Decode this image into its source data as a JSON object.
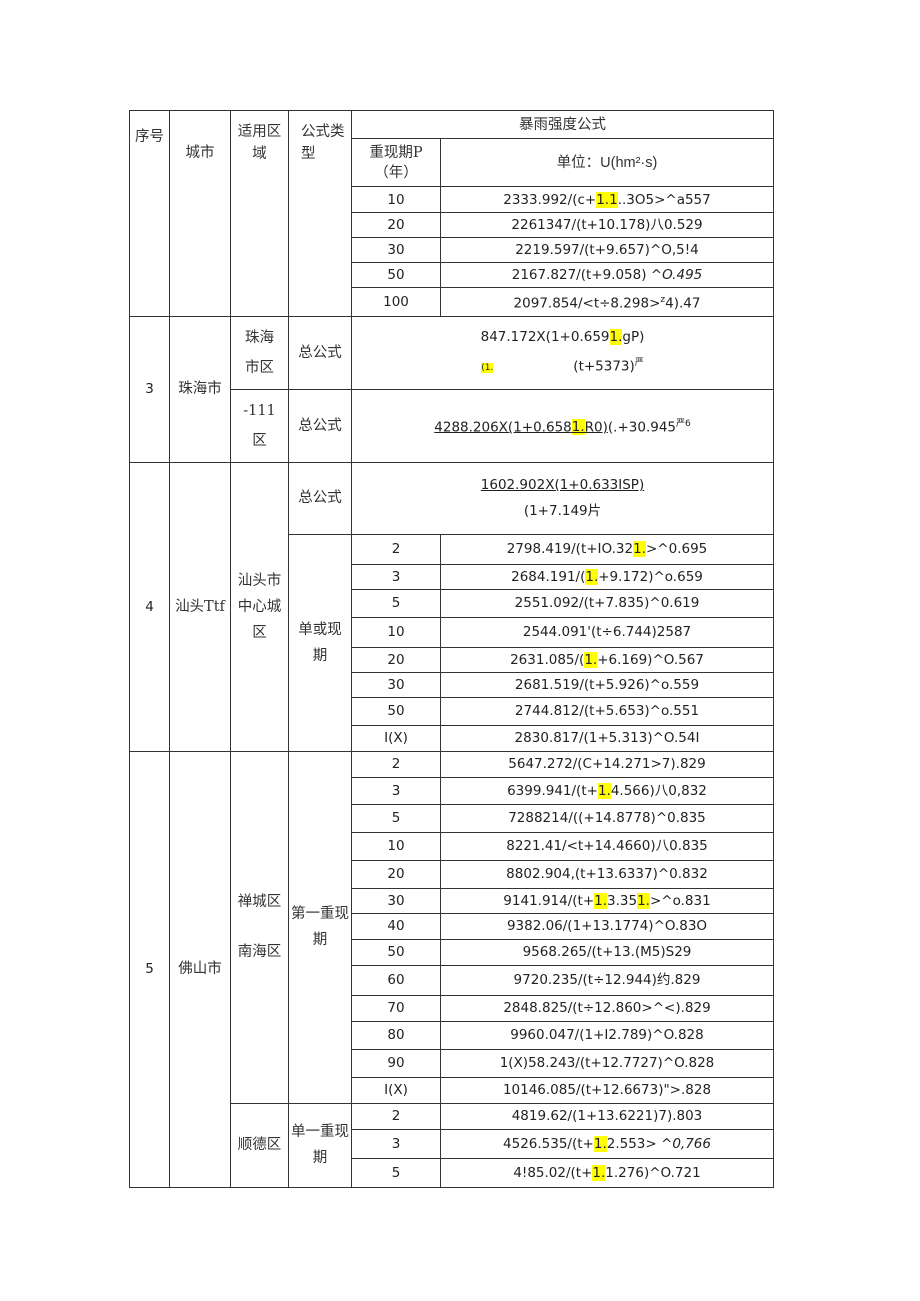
{
  "header": {
    "seq": "序号",
    "city": "城市",
    "area": "适用区域",
    "type": "公式类型",
    "title": "暴雨强度公式",
    "period": "重现期P（年）",
    "unit_label": "单位：",
    "unit_value": "U(hm²·s)"
  },
  "sections": [
    {
      "seq": "",
      "city": "",
      "rows": [
        {
          "p": "10",
          "f": [
            "2333.992/(c+",
            {
              "hl": "1.1"
            },
            "..3O5>^a557"
          ]
        },
        {
          "p": "20",
          "f": [
            "2261347/(t+10.178)八0.529"
          ]
        },
        {
          "p": "30",
          "f": [
            "2219.597/(t+9.657)^O,5!4"
          ]
        },
        {
          "p": "50",
          "f": [
            "2167.827/(t+9.058) ",
            {
              "it": "^O.495"
            }
          ]
        },
        {
          "p": "100",
          "f": [
            "2097.854/<t÷8.298>",
            {
              "sup": "z"
            },
            "4).47"
          ]
        }
      ]
    },
    {
      "seq": "3",
      "city": "珠海市",
      "areas": [
        {
          "area": "珠海市区",
          "type": "总公式",
          "num": [
            "847.172X(1+0.659",
            {
              "hl": "1."
            },
            "gP)"
          ],
          "den_prefix": "(1.",
          "den": "(t+5373)",
          "den_sup": "严"
        },
        {
          "area": "-111区",
          "type": "总公式",
          "num": [
            "4288.206X(1+0.658",
            {
              "hl": "1."
            },
            "R0)"
          ],
          "den": "(.+30.945",
          "den_sup": "严6"
        }
      ]
    },
    {
      "seq": "4",
      "city": "汕头Ttf",
      "area": "汕头市中心城区",
      "general": {
        "type": "总公式",
        "num": "1602.902X(1+0.633ISP)",
        "den": "(1+7.149片"
      },
      "type": "单或现期",
      "rows": [
        {
          "p": "2",
          "f": [
            "2798.419/(t+IO.32",
            {
              "hl": "1."
            },
            ">^0.695"
          ]
        },
        {
          "p": "3",
          "f": [
            "2684.191/(",
            {
              "hl": "1."
            },
            "+9.172)^o.659"
          ]
        },
        {
          "p": "5",
          "f": [
            "2551.092/(t+7.835)^0.619"
          ]
        },
        {
          "p": "10",
          "f": [
            "2544.091'(t÷6.744)2587"
          ]
        },
        {
          "p": "20",
          "f": [
            "2631.085/(",
            {
              "hl": "1."
            },
            "+6.169)^O.567"
          ]
        },
        {
          "p": "30",
          "f": [
            "2681.519/(t+5.926)^o.559"
          ]
        },
        {
          "p": "50",
          "f": [
            "2744.812/(t+5.653)^o.551"
          ]
        },
        {
          "p": "I(X)",
          "f": [
            "2830.817/(1+5.313)^O.54I"
          ]
        }
      ]
    },
    {
      "seq": "5",
      "city": "佛山市",
      "groups": [
        {
          "area_lines": [
            "禅城区",
            "南海区"
          ],
          "type": "第一重现期",
          "rows": [
            {
              "p": "2",
              "f": [
                "5647.272/(C+14.271>7).829"
              ]
            },
            {
              "p": "3",
              "f": [
                "6399.941/(t+",
                {
                  "hl": "1."
                },
                "4.566)八0,832"
              ]
            },
            {
              "p": "5",
              "f": [
                "7288214/((+14.8778)^0.835"
              ]
            },
            {
              "p": "10",
              "f": [
                "8221.41/<t+14.4660)八0.835"
              ]
            },
            {
              "p": "20",
              "f": [
                "8802.904,(t+13.6337)^0.832"
              ]
            },
            {
              "p": "30",
              "f": [
                "9141.914/(t+",
                {
                  "hl": "1."
                },
                "3.35",
                {
                  "hl": "1."
                },
                ">^o.831"
              ]
            },
            {
              "p": "40",
              "f": [
                "9382.06/(1+13.1774)^O.83O"
              ]
            },
            {
              "p": "50",
              "f": [
                "9568.265/(t+13.(M5)S29"
              ]
            },
            {
              "p": "60",
              "f": [
                "9720.235/(t÷12.944)约.829"
              ]
            },
            {
              "p": "70",
              "f": [
                "2848.825/(t÷12.860>^<).829"
              ]
            },
            {
              "p": "80",
              "f": [
                "9960.047/(1+I2.789)^O.828"
              ]
            },
            {
              "p": "90",
              "f": [
                "1(X)58.243/(t+12.7727)^O.828"
              ]
            },
            {
              "p": "I(X)",
              "f": [
                "10146.085/(t+12.6673)\">.828"
              ]
            }
          ]
        },
        {
          "area_lines": [
            "顺德区"
          ],
          "type": "单一重现期",
          "rows": [
            {
              "p": "2",
              "f": [
                "4819.62/(1+13.6221)7).803"
              ]
            },
            {
              "p": "3",
              "f": [
                "4526.535/(t+",
                {
                  "hl": "1."
                },
                "2.553> ",
                {
                  "it": "^0,766"
                }
              ]
            },
            {
              "p": "5",
              "f": [
                "4!85.02/(t+",
                {
                  "hl": "1."
                },
                "1.276)^O.721"
              ]
            }
          ]
        }
      ]
    }
  ],
  "colors": {
    "highlight": "#ffff00",
    "border": "#333333"
  }
}
